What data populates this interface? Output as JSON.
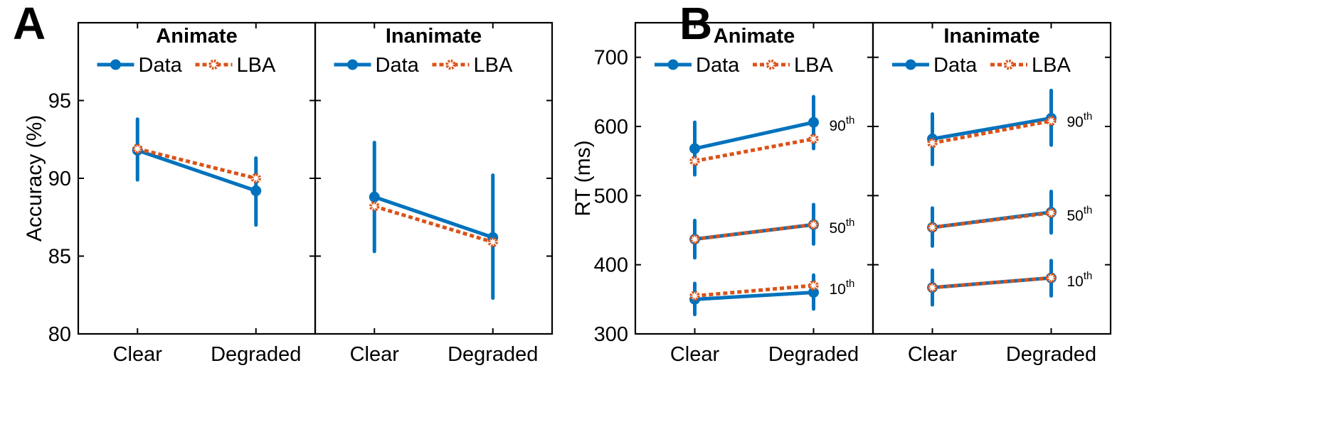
{
  "colors": {
    "data": "#0072BD",
    "lba": "#D95319"
  },
  "chart_data": [
    {
      "panel": "A",
      "type": "line",
      "ylabel": "Accuracy (%)",
      "ylim": [
        80,
        100
      ],
      "yticks": [
        "80",
        "85",
        "90",
        "95"
      ],
      "subplots": [
        {
          "title": "Animate",
          "categories": [
            "Clear",
            "Degraded"
          ],
          "legend": [
            "Data",
            "LBA"
          ],
          "legend_position": "top",
          "series": [
            {
              "name": "Data",
              "values": [
                91.8,
                89.2
              ],
              "err_low": [
                89.9,
                87.0
              ],
              "err_high": [
                93.8,
                91.3
              ]
            },
            {
              "name": "LBA",
              "values": [
                91.9,
                90.0
              ]
            }
          ]
        },
        {
          "title": "Inanimate",
          "categories": [
            "Clear",
            "Degraded"
          ],
          "legend": [
            "Data",
            "LBA"
          ],
          "legend_position": "top",
          "series": [
            {
              "name": "Data",
              "values": [
                88.8,
                86.2
              ],
              "err_low": [
                85.3,
                82.3
              ],
              "err_high": [
                92.3,
                90.2
              ]
            },
            {
              "name": "LBA",
              "values": [
                88.2,
                85.9
              ]
            }
          ]
        }
      ]
    },
    {
      "panel": "B",
      "type": "line",
      "ylabel": "RT (ms)",
      "ylim": [
        300,
        750
      ],
      "yticks": [
        "300",
        "400",
        "500",
        "600",
        "700"
      ],
      "percentile_suffix": "th",
      "subplots": [
        {
          "title": "Animate",
          "categories": [
            "Clear",
            "Degraded"
          ],
          "legend": [
            "Data",
            "LBA"
          ],
          "legend_position": "top",
          "groups": [
            {
              "label": "90",
              "data": [
                568,
                606
              ],
              "err_low": [
                530,
                568
              ],
              "err_high": [
                606,
                643
              ],
              "lba": [
                550,
                582
              ]
            },
            {
              "label": "50",
              "data": [
                437,
                458
              ],
              "err_low": [
                410,
                430
              ],
              "err_high": [
                464,
                487
              ],
              "lba": [
                437,
                458
              ]
            },
            {
              "label": "10",
              "data": [
                350,
                360
              ],
              "err_low": [
                328,
                336
              ],
              "err_high": [
                373,
                385
              ],
              "lba": [
                355,
                370
              ]
            }
          ]
        },
        {
          "title": "Inanimate",
          "categories": [
            "Clear",
            "Degraded"
          ],
          "legend": [
            "Data",
            "LBA"
          ],
          "legend_position": "top",
          "groups": [
            {
              "label": "90",
              "data": [
                582,
                612
              ],
              "err_low": [
                545,
                573
              ],
              "err_high": [
                618,
                652
              ],
              "lba": [
                576,
                608
              ]
            },
            {
              "label": "50",
              "data": [
                454,
                476
              ],
              "err_low": [
                427,
                446
              ],
              "err_high": [
                482,
                506
              ],
              "lba": [
                454,
                475
              ]
            },
            {
              "label": "10",
              "data": [
                367,
                381
              ],
              "err_low": [
                342,
                355
              ],
              "err_high": [
                392,
                406
              ],
              "lba": [
                367,
                381
              ]
            }
          ]
        }
      ]
    }
  ]
}
